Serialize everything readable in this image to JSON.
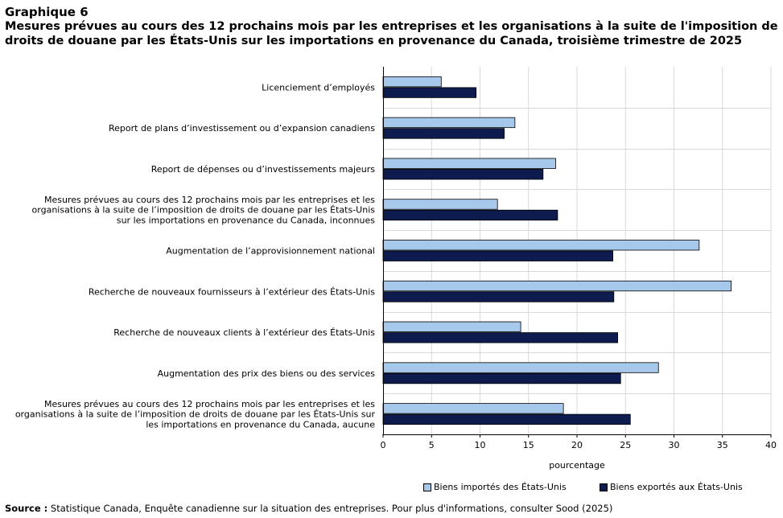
{
  "figure": {
    "number": "Graphique 6",
    "title": "Mesures prévues au cours des 12 prochains mois par les entreprises et les organisations à la suite de l'imposition de droits de douane  par les États-Unis sur les importations en provenance du Canada, troisième trimestre de 2025"
  },
  "chart_data": {
    "type": "bar",
    "orientation": "horizontal",
    "title": "Mesures prévues au cours des 12 prochains mois par les entreprises et les organisations à la suite de l'imposition de droits de douane  par les États-Unis sur les importations en provenance du Canada, troisième trimestre de 2025",
    "xlabel": "pourcentage",
    "ylabel": "",
    "xlim": [
      0,
      40
    ],
    "xticks": [
      0,
      5,
      10,
      15,
      20,
      25,
      30,
      35,
      40
    ],
    "grid": true,
    "legend_position": "bottom",
    "categories": [
      [
        "Licenciement d’employés"
      ],
      [
        "Report de plans d’investissement ou d’expansion canadiens"
      ],
      [
        "Report de dépenses ou d’investissements majeurs"
      ],
      [
        "Mesures prévues au cours des 12 prochains mois par les entreprises et les",
        "organisations à la suite de l’imposition de droits de douane par les États-Unis",
        "sur les importations en provenance du Canada, inconnues"
      ],
      [
        "Augmentation de l’approvisionnement national"
      ],
      [
        "Recherche de nouveaux fournisseurs à l’extérieur des États-Unis"
      ],
      [
        "Recherche de nouveaux clients à l’extérieur des États-Unis"
      ],
      [
        "Augmentation des prix des biens ou des services"
      ],
      [
        "Mesures prévues au cours des 12 prochains mois par les entreprises et les",
        "organisations à la suite de l’imposition de droits de douane par les États-Unis sur",
        "les importations en provenance du Canada, aucune"
      ]
    ],
    "series": [
      {
        "name": "Biens importés des États-Unis",
        "color": "#a6c8ea",
        "values": [
          6.0,
          13.6,
          17.8,
          11.8,
          32.6,
          35.9,
          14.2,
          28.4,
          18.6
        ]
      },
      {
        "name": "Biens exportés aux États-Unis",
        "color": "#0d1b4f",
        "values": [
          9.6,
          12.5,
          16.5,
          18.0,
          23.7,
          23.8,
          24.2,
          24.5,
          25.5
        ]
      }
    ]
  },
  "source": {
    "label": "Source :",
    "text": "Statistique Canada, Enquête canadienne sur la situation des entreprises. Pour plus d'informations, consulter Sood (2025)"
  }
}
